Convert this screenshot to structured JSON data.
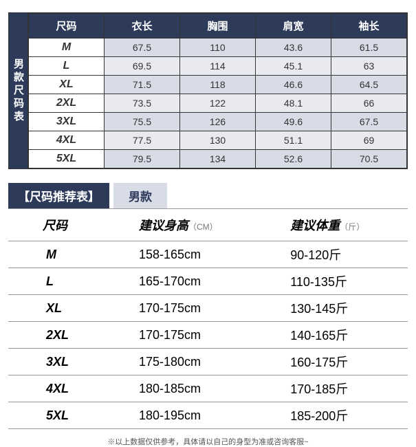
{
  "table1": {
    "vertical_label": "男款尺码表",
    "headers": [
      "尺码",
      "衣长",
      "胸围",
      "肩宽",
      "袖长"
    ],
    "rows": [
      {
        "size": "M",
        "vals": [
          "67.5",
          "110",
          "43.6",
          "61.5"
        ]
      },
      {
        "size": "L",
        "vals": [
          "69.5",
          "114",
          "45.1",
          "63"
        ]
      },
      {
        "size": "XL",
        "vals": [
          "71.5",
          "118",
          "46.6",
          "64.5"
        ]
      },
      {
        "size": "2XL",
        "vals": [
          "73.5",
          "122",
          "48.1",
          "66"
        ]
      },
      {
        "size": "3XL",
        "vals": [
          "75.5",
          "126",
          "49.6",
          "67.5"
        ]
      },
      {
        "size": "4XL",
        "vals": [
          "77.5",
          "130",
          "51.1",
          "69"
        ]
      },
      {
        "size": "5XL",
        "vals": [
          "79.5",
          "134",
          "52.6",
          "70.5"
        ]
      }
    ],
    "header_bg": "#2d3a5a",
    "header_color": "#ffffff",
    "row_odd_bg": "#d8dce6",
    "row_even_bg": "#e8eaf0",
    "size_col_bg": "#ffffff",
    "border_color": "#333333"
  },
  "banner": {
    "left": "【尺码推荐表】",
    "right": "男款",
    "left_bg": "#2d3a5a",
    "left_color": "#ffffff",
    "right_bg": "#d8dce6",
    "right_color": "#2d3a5a"
  },
  "table2": {
    "headers": {
      "c1": "尺码",
      "c2": "建议身高",
      "c2_unit": "（CM）",
      "c3": "建议体重",
      "c3_unit": "（斤）"
    },
    "rows": [
      {
        "size": "M",
        "height": "158-165cm",
        "weight": "90-120斤"
      },
      {
        "size": "L",
        "height": "165-170cm",
        "weight": "110-135斤"
      },
      {
        "size": "XL",
        "height": "170-175cm",
        "weight": "130-145斤"
      },
      {
        "size": "2XL",
        "height": "170-175cm",
        "weight": "140-165斤"
      },
      {
        "size": "3XL",
        "height": "175-180cm",
        "weight": "160-175斤"
      },
      {
        "size": "4XL",
        "height": "180-185cm",
        "weight": "170-185斤"
      },
      {
        "size": "5XL",
        "height": "180-195cm",
        "weight": "185-200斤"
      }
    ],
    "border_color": "#999999"
  },
  "footnote": "※以上数据仅供参考，具体请以自己的身型为准或咨询客服~"
}
